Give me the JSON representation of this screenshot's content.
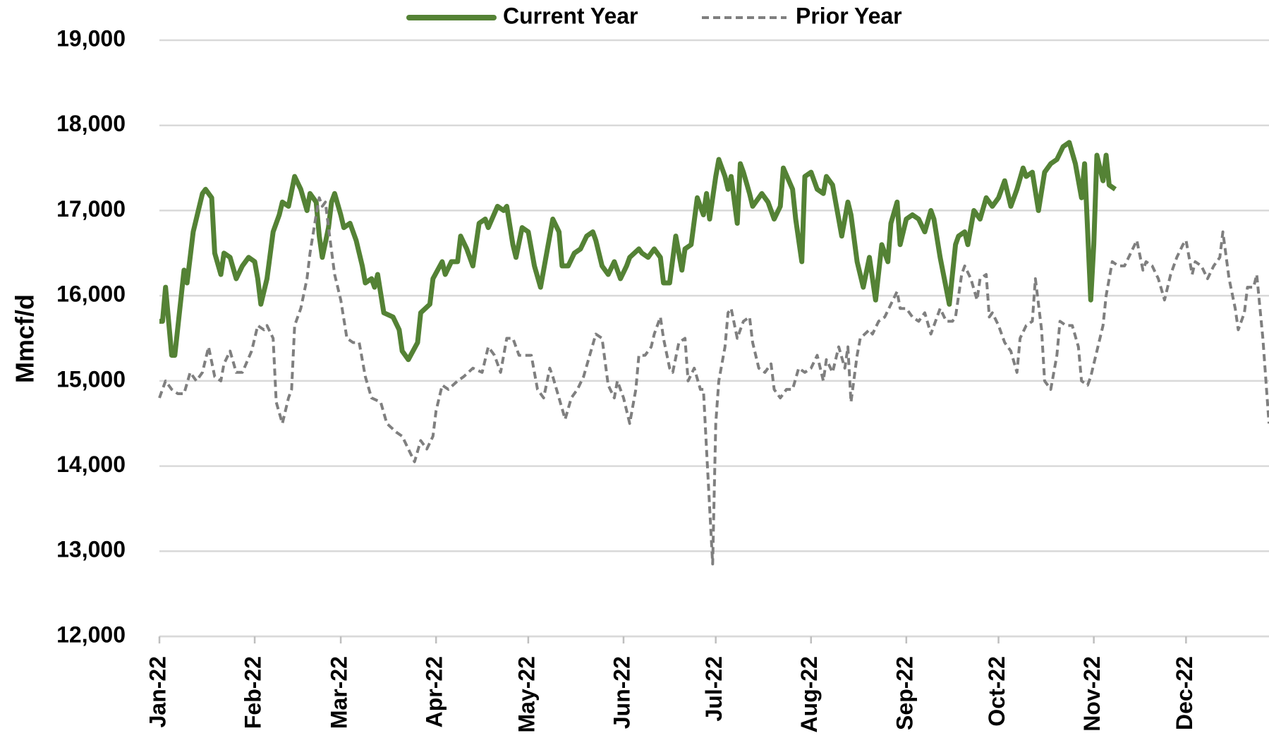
{
  "chart_data": {
    "type": "line",
    "y_label": "Mmcf/d",
    "legend": "top",
    "grid": true,
    "xlim": [
      0,
      361
    ],
    "xticks": [
      {
        "value": 0,
        "label": "Jan-22"
      },
      {
        "value": 31,
        "label": "Feb-22"
      },
      {
        "value": 59,
        "label": "Mar-22"
      },
      {
        "value": 90,
        "label": "Apr-22"
      },
      {
        "value": 120,
        "label": "May-22"
      },
      {
        "value": 151,
        "label": "Jun-22"
      },
      {
        "value": 181,
        "label": "Jul-22"
      },
      {
        "value": 212,
        "label": "Aug-22"
      },
      {
        "value": 243,
        "label": "Sep-22"
      },
      {
        "value": 273,
        "label": "Oct-22"
      },
      {
        "value": 304,
        "label": "Nov-22"
      },
      {
        "value": 334,
        "label": "Dec-22"
      }
    ],
    "ylim": [
      12000,
      19000
    ],
    "yticks": [
      {
        "value": 12000,
        "label": "12,000"
      },
      {
        "value": 13000,
        "label": "13,000"
      },
      {
        "value": 14000,
        "label": "14,000"
      },
      {
        "value": 15000,
        "label": "15,000"
      },
      {
        "value": 16000,
        "label": "16,000"
      },
      {
        "value": 17000,
        "label": "17,000"
      },
      {
        "value": 18000,
        "label": "18,000"
      },
      {
        "value": 19000,
        "label": "19,000"
      }
    ],
    "series": [
      {
        "name": "Current Year",
        "color": "#548235",
        "dash": false,
        "x": [
          0,
          1,
          2,
          4,
          5,
          8,
          9,
          11,
          13,
          14,
          15,
          17,
          18,
          20,
          21,
          23,
          25,
          27,
          29,
          31,
          32,
          33,
          35,
          37,
          39,
          40,
          42,
          44,
          46,
          48,
          49,
          51,
          52,
          53,
          55,
          56,
          57,
          59,
          60,
          62,
          64,
          66,
          67,
          69,
          70,
          71,
          73,
          76,
          78,
          79,
          81,
          84,
          85,
          88,
          89,
          92,
          93,
          95,
          97,
          98,
          100,
          102,
          104,
          106,
          107,
          110,
          112,
          113,
          115,
          116,
          118,
          120,
          122,
          124,
          126,
          128,
          130,
          131,
          133,
          135,
          137,
          139,
          141,
          142,
          144,
          146,
          148,
          150,
          152,
          153,
          156,
          157,
          159,
          161,
          163,
          164,
          166,
          168,
          170,
          171,
          173,
          175,
          177,
          178,
          179,
          181,
          182,
          184,
          185,
          186,
          188,
          189,
          190,
          192,
          193,
          196,
          198,
          200,
          202,
          203,
          206,
          207,
          209,
          210,
          212,
          214,
          216,
          217,
          219,
          221,
          222,
          224,
          225,
          227,
          229,
          231,
          233,
          235,
          237,
          238,
          240,
          241,
          243,
          245,
          247,
          249,
          251,
          252,
          254,
          257,
          259,
          260,
          262,
          263,
          265,
          267,
          269,
          271,
          273,
          275,
          277,
          279,
          281,
          282,
          284,
          286,
          288,
          290,
          292,
          294,
          296,
          298,
          300,
          301,
          303,
          304,
          305,
          307,
          308,
          309,
          311
        ],
        "values": [
          15700,
          15700,
          16100,
          15300,
          15300,
          16300,
          16150,
          16750,
          17050,
          17200,
          17250,
          17150,
          16500,
          16250,
          16500,
          16450,
          16200,
          16350,
          16450,
          16400,
          16200,
          15900,
          16200,
          16750,
          16950,
          17100,
          17050,
          17400,
          17250,
          17000,
          17200,
          17100,
          16700,
          16450,
          16800,
          17100,
          17200,
          16950,
          16800,
          16850,
          16650,
          16350,
          16150,
          16200,
          16100,
          16250,
          15800,
          15750,
          15600,
          15350,
          15250,
          15450,
          15800,
          15900,
          16200,
          16400,
          16250,
          16400,
          16400,
          16700,
          16550,
          16350,
          16850,
          16900,
          16800,
          17050,
          17000,
          17050,
          16600,
          16450,
          16800,
          16750,
          16350,
          16100,
          16500,
          16900,
          16750,
          16350,
          16350,
          16500,
          16550,
          16700,
          16750,
          16650,
          16350,
          16250,
          16400,
          16200,
          16350,
          16450,
          16550,
          16500,
          16450,
          16550,
          16450,
          16150,
          16150,
          16700,
          16300,
          16550,
          16600,
          17150,
          16950,
          17200,
          16900,
          17400,
          17600,
          17400,
          17250,
          17400,
          16850,
          17550,
          17450,
          17200,
          17050,
          17200,
          17100,
          16900,
          17050,
          17500,
          17250,
          16900,
          16400,
          17400,
          17450,
          17250,
          17200,
          17400,
          17300,
          16900,
          16700,
          17100,
          16950,
          16400,
          16100,
          16450,
          15950,
          16600,
          16400,
          16850,
          17100,
          16600,
          16900,
          16950,
          16900,
          16750,
          17000,
          16900,
          16450,
          15900,
          16600,
          16700,
          16750,
          16600,
          17000,
          16900,
          17150,
          17050,
          17150,
          17350,
          17050,
          17250,
          17500,
          17400,
          17450,
          17000,
          17450,
          17550,
          17600,
          17750,
          17800,
          17550,
          17150,
          17550,
          15950,
          16600,
          17650,
          17350,
          17650,
          17300,
          17250
        ]
      },
      {
        "name": "Prior Year",
        "color": "#7f7f7f",
        "dash": true,
        "x": [
          0,
          2,
          4,
          6,
          8,
          10,
          12,
          14,
          16,
          18,
          20,
          21,
          23,
          25,
          27,
          30,
          32,
          34,
          35,
          37,
          38,
          40,
          42,
          43,
          44,
          46,
          48,
          49,
          51,
          52,
          53,
          54,
          55,
          57,
          59,
          61,
          63,
          65,
          67,
          69,
          72,
          74,
          77,
          79,
          81,
          83,
          85,
          87,
          89,
          90,
          92,
          94,
          97,
          99,
          102,
          105,
          107,
          109,
          111,
          113,
          115,
          117,
          119,
          121,
          123,
          125,
          127,
          128,
          130,
          132,
          134,
          136,
          138,
          140,
          142,
          144,
          146,
          148,
          149,
          151,
          153,
          155,
          156,
          158,
          160,
          161,
          163,
          164,
          166,
          167,
          169,
          171,
          172,
          174,
          176,
          177,
          178,
          180,
          181,
          182,
          184,
          185,
          186,
          188,
          189,
          190,
          192,
          193,
          195,
          197,
          199,
          200,
          202,
          204,
          206,
          208,
          210,
          212,
          214,
          216,
          217,
          219,
          221,
          223,
          224,
          225,
          227,
          228,
          231,
          232,
          234,
          236,
          238,
          240,
          241,
          243,
          245,
          247,
          249,
          251,
          253,
          254,
          256,
          258,
          259,
          261,
          262,
          264,
          266,
          267,
          269,
          270,
          271,
          273,
          275,
          277,
          279,
          280,
          282,
          284,
          285,
          287,
          288,
          290,
          292,
          293,
          295,
          297,
          299,
          300,
          302,
          303,
          305,
          307,
          308,
          310,
          312,
          314,
          316,
          318,
          320,
          321,
          323,
          325,
          327,
          329,
          331,
          333,
          334,
          336,
          337,
          339,
          341,
          343,
          345,
          346,
          348,
          350,
          351,
          353,
          354,
          356,
          357,
          359,
          361
        ],
        "values": [
          14800,
          15000,
          14900,
          14850,
          14850,
          15100,
          15000,
          15100,
          15400,
          15050,
          15000,
          15200,
          15350,
          15100,
          15100,
          15350,
          15650,
          15600,
          15650,
          15500,
          14750,
          14500,
          14800,
          14900,
          15650,
          15850,
          16200,
          16500,
          16950,
          17150,
          17050,
          17100,
          16800,
          16250,
          15950,
          15500,
          15450,
          15450,
          15050,
          14800,
          14750,
          14500,
          14400,
          14350,
          14200,
          14050,
          14300,
          14200,
          14350,
          14650,
          14950,
          14900,
          15000,
          15050,
          15150,
          15100,
          15400,
          15300,
          15100,
          15500,
          15500,
          15300,
          15300,
          15300,
          14900,
          14800,
          15150,
          15050,
          14800,
          14550,
          14800,
          14900,
          15050,
          15300,
          15550,
          15500,
          14950,
          14800,
          15000,
          14800,
          14500,
          14900,
          15300,
          15300,
          15400,
          15550,
          15750,
          15500,
          15150,
          15100,
          15450,
          15500,
          15000,
          15150,
          14900,
          14900,
          14200,
          12850,
          14500,
          15000,
          15400,
          15800,
          15850,
          15500,
          15600,
          15700,
          15750,
          15450,
          15150,
          15100,
          15200,
          14900,
          14800,
          14900,
          14900,
          15150,
          15100,
          15150,
          15300,
          15000,
          15250,
          15100,
          15400,
          15150,
          15400,
          14750,
          15300,
          15500,
          15600,
          15550,
          15700,
          15750,
          15900,
          16050,
          15850,
          15850,
          15750,
          15700,
          15800,
          15550,
          15750,
          15850,
          15700,
          15700,
          15750,
          16250,
          16350,
          16200,
          15950,
          16200,
          16250,
          15750,
          15800,
          15650,
          15450,
          15350,
          15100,
          15500,
          15650,
          15700,
          16200,
          15600,
          15000,
          14900,
          15300,
          15700,
          15650,
          15650,
          15400,
          15000,
          14950,
          15050,
          15350,
          15650,
          16000,
          16400,
          16350,
          16350,
          16500,
          16650,
          16300,
          16400,
          16350,
          16200,
          15950,
          16250,
          16450,
          16600,
          16650,
          16250,
          16400,
          16350,
          16200,
          16350,
          16450,
          16750,
          16200,
          15850,
          15600,
          15800,
          16100,
          16100,
          16250,
          15500,
          14500
        ]
      }
    ]
  }
}
